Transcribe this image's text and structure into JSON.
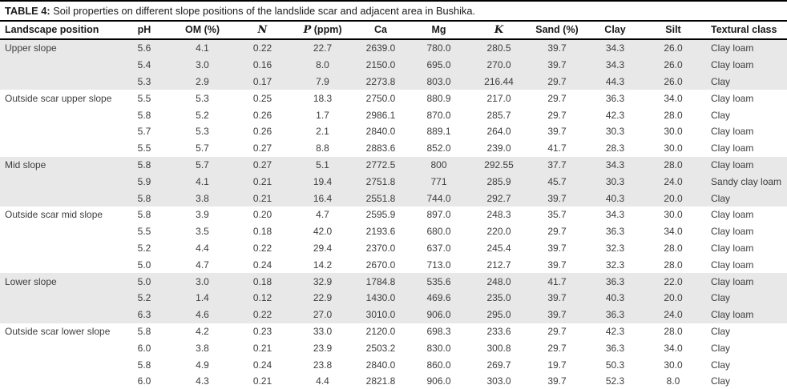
{
  "title": {
    "label": "TABLE 4:",
    "text": " Soil properties on different slope positions of the landslide scar and adjacent area in Bushika."
  },
  "colors": {
    "shaded_row": "#e8e8e8",
    "rule": "#000000",
    "body_text": "#3d3d3d",
    "heading_text": "#1a1a1a"
  },
  "table": {
    "columns": [
      {
        "name": "landscape-position",
        "math": "",
        "rest": "Landscape position"
      },
      {
        "name": "ph",
        "math": "",
        "rest": "pH"
      },
      {
        "name": "om-percent",
        "math": "",
        "rest": "OM (%)"
      },
      {
        "name": "n",
        "math": "N",
        "rest": ""
      },
      {
        "name": "p-ppm",
        "math": "P",
        "rest": " (ppm)"
      },
      {
        "name": "ca",
        "math": "",
        "rest": "Ca"
      },
      {
        "name": "mg",
        "math": "",
        "rest": "Mg"
      },
      {
        "name": "k",
        "math": "K",
        "rest": ""
      },
      {
        "name": "sand-percent",
        "math": "",
        "rest": "Sand (%)"
      },
      {
        "name": "clay",
        "math": "",
        "rest": "Clay"
      },
      {
        "name": "silt",
        "math": "",
        "rest": "Silt"
      },
      {
        "name": "textural-class",
        "math": "",
        "rest": "Textural class"
      }
    ],
    "groups": [
      {
        "position": "Upper slope",
        "shaded": true,
        "rows": [
          [
            "5.6",
            "4.1",
            "0.22",
            "22.7",
            "2639.0",
            "780.0",
            "280.5",
            "39.7",
            "34.3",
            "26.0",
            "Clay loam"
          ],
          [
            "5.4",
            "3.0",
            "0.16",
            "8.0",
            "2150.0",
            "695.0",
            "270.0",
            "39.7",
            "34.3",
            "26.0",
            "Clay loam"
          ],
          [
            "5.3",
            "2.9",
            "0.17",
            "7.9",
            "2273.8",
            "803.0",
            "216.44",
            "29.7",
            "44.3",
            "26.0",
            "Clay"
          ]
        ]
      },
      {
        "position": "Outside scar upper slope",
        "shaded": false,
        "rows": [
          [
            "5.5",
            "5.3",
            "0.25",
            "18.3",
            "2750.0",
            "880.9",
            "217.0",
            "29.7",
            "36.3",
            "34.0",
            "Clay loam"
          ],
          [
            "5.8",
            "5.2",
            "0.26",
            "1.7",
            "2986.1",
            "870.0",
            "285.7",
            "29.7",
            "42.3",
            "28.0",
            "Clay"
          ],
          [
            "5.7",
            "5.3",
            "0.26",
            "2.1",
            "2840.0",
            "889.1",
            "264.0",
            "39.7",
            "30.3",
            "30.0",
            "Clay loam"
          ],
          [
            "5.5",
            "5.7",
            "0.27",
            "8.8",
            "2883.6",
            "852.0",
            "239.0",
            "41.7",
            "28.3",
            "30.0",
            "Clay loam"
          ]
        ]
      },
      {
        "position": "Mid slope",
        "shaded": true,
        "rows": [
          [
            "5.8",
            "5.7",
            "0.27",
            "5.1",
            "2772.5",
            "800",
            "292.55",
            "37.7",
            "34.3",
            "28.0",
            "Clay loam"
          ],
          [
            "5.9",
            "4.1",
            "0.21",
            "19.4",
            "2751.8",
            "771",
            "285.9",
            "45.7",
            "30.3",
            "24.0",
            "Sandy clay loam"
          ],
          [
            "5.8",
            "3.8",
            "0.21",
            "16.4",
            "2551.8",
            "744.0",
            "292.7",
            "39.7",
            "40.3",
            "20.0",
            "Clay"
          ]
        ]
      },
      {
        "position": "Outside scar mid slope",
        "shaded": false,
        "rows": [
          [
            "5.8",
            "3.9",
            "0.20",
            "4.7",
            "2595.9",
            "897.0",
            "248.3",
            "35.7",
            "34.3",
            "30.0",
            "Clay loam"
          ],
          [
            "5.5",
            "3.5",
            "0.18",
            "42.0",
            "2193.6",
            "680.0",
            "220.0",
            "29.7",
            "36.3",
            "34.0",
            "Clay loam"
          ],
          [
            "5.2",
            "4.4",
            "0.22",
            "29.4",
            "2370.0",
            "637.0",
            "245.4",
            "39.7",
            "32.3",
            "28.0",
            "Clay loam"
          ],
          [
            "5.0",
            "4.7",
            "0.24",
            "14.2",
            "2670.0",
            "713.0",
            "212.7",
            "39.7",
            "32.3",
            "28.0",
            "Clay loam"
          ]
        ]
      },
      {
        "position": "Lower slope",
        "shaded": true,
        "rows": [
          [
            "5.0",
            "3.0",
            "0.18",
            "32.9",
            "1784.8",
            "535.6",
            "248.0",
            "41.7",
            "36.3",
            "22.0",
            "Clay loam"
          ],
          [
            "5.2",
            "1.4",
            "0.12",
            "22.9",
            "1430.0",
            "469.6",
            "235.0",
            "39.7",
            "40.3",
            "20.0",
            "Clay"
          ],
          [
            "6.3",
            "4.6",
            "0.22",
            "27.0",
            "3010.0",
            "906.0",
            "295.0",
            "39.7",
            "36.3",
            "24.0",
            "Clay loam"
          ]
        ]
      },
      {
        "position": "Outside scar lower slope",
        "shaded": false,
        "rows": [
          [
            "5.8",
            "4.2",
            "0.23",
            "33.0",
            "2120.0",
            "698.3",
            "233.6",
            "29.7",
            "42.3",
            "28.0",
            "Clay"
          ],
          [
            "6.0",
            "3.8",
            "0.21",
            "23.9",
            "2503.2",
            "830.0",
            "300.8",
            "29.7",
            "36.3",
            "34.0",
            "Clay"
          ],
          [
            "5.8",
            "4.9",
            "0.24",
            "23.8",
            "2840.0",
            "860.0",
            "269.7",
            "19.7",
            "50.3",
            "30.0",
            "Clay"
          ],
          [
            "6.0",
            "4.3",
            "0.21",
            "4.4",
            "2821.8",
            "906.0",
            "303.0",
            "39.7",
            "52.3",
            "8.0",
            "Clay"
          ]
        ]
      }
    ]
  }
}
